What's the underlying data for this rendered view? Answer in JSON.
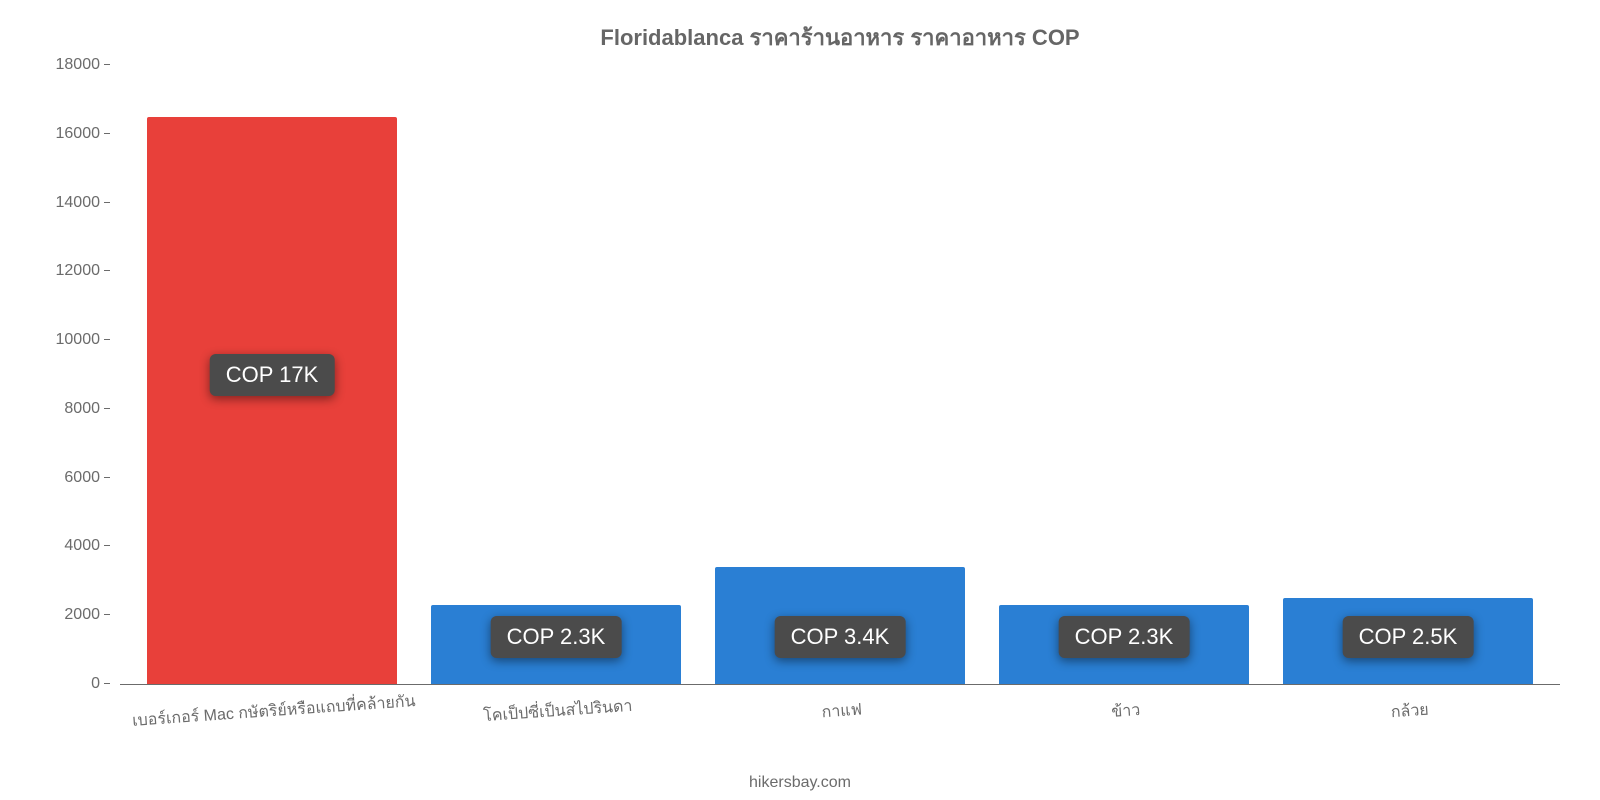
{
  "chart": {
    "type": "bar",
    "title": "Floridablanca ราคาร้านอาหาร ราคาอาหาร COP",
    "title_fontsize": 22,
    "title_color": "#666666",
    "background_color": "#ffffff",
    "axis_color": "#6b6b6b",
    "tick_color": "#6b6b6b",
    "tick_fontsize": 16,
    "ylim": [
      0,
      18000
    ],
    "ytick_step": 2000,
    "yticks": [
      0,
      2000,
      4000,
      6000,
      8000,
      10000,
      12000,
      14000,
      16000,
      18000
    ],
    "bar_width": 0.88,
    "categories": [
      "เบอร์เกอร์ Mac กษัตริย์หรือแถบที่คล้ายกัน",
      "โคเป็ปซี่เป็นสไปรินดา",
      "กาแฟ",
      "ข้าว",
      "กล้วย"
    ],
    "x_label_fontsize": 16,
    "x_label_rotation_deg": -4,
    "values": [
      16500,
      2300,
      3400,
      2300,
      2500
    ],
    "bar_colors": [
      "#e8403a",
      "#2a7fd4",
      "#2a7fd4",
      "#2a7fd4",
      "#2a7fd4"
    ],
    "value_labels": [
      "COP 17K",
      "COP 2.3K",
      "COP 3.4K",
      "COP 2.3K",
      "COP 2.5K"
    ],
    "value_label_bg": "#4b4b4b",
    "value_label_color": "#ffffff",
    "value_label_fontsize": 22,
    "value_label_mode": [
      "center",
      "pin-bottom",
      "pin-bottom",
      "pin-bottom",
      "pin-bottom"
    ],
    "attribution": "hikersbay.com",
    "attribution_fontsize": 16
  }
}
